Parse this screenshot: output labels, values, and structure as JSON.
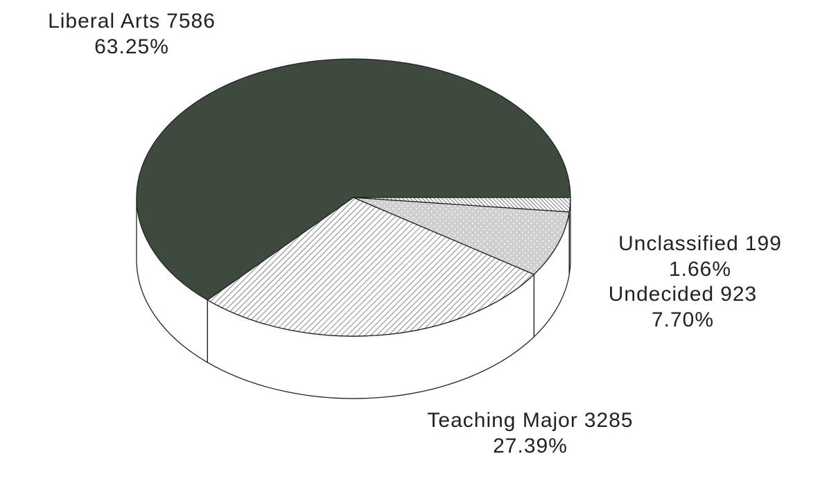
{
  "chart_data": {
    "type": "pie3d",
    "categories": [
      "Liberal Arts",
      "Teaching Major",
      "Undecided",
      "Unclassified"
    ],
    "values": [
      7586,
      3285,
      923,
      199
    ],
    "percentages": [
      63.25,
      27.39,
      7.7,
      1.66
    ],
    "percent_labels": [
      "63.25%",
      "27.39%",
      "7.70%",
      "1.66%"
    ],
    "colors": [
      "#3e4a3d",
      "#555555",
      "#cfcfcf",
      "#444444"
    ]
  }
}
